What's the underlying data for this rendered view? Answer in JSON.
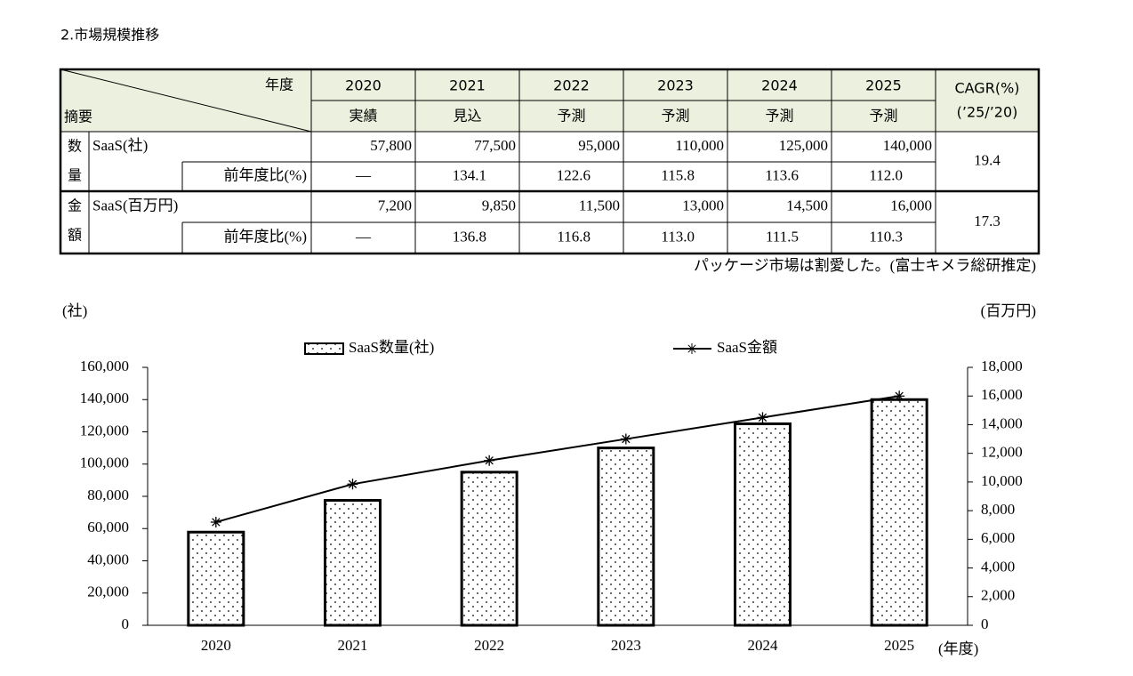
{
  "heading": "2.市場規模推移",
  "table": {
    "corner_top": "年度",
    "corner_bottom": "摘要",
    "years": [
      "2020",
      "2021",
      "2022",
      "2023",
      "2024",
      "2025"
    ],
    "status": [
      "実績",
      "見込",
      "予測",
      "予測",
      "予測",
      "予測"
    ],
    "cagr_header": [
      "CAGR(%)",
      "(’25/’20)"
    ],
    "groups": [
      {
        "label": [
          "数",
          "量"
        ],
        "rows": [
          {
            "name": "SaaS(社)",
            "values": [
              "57,800",
              "77,500",
              "95,000",
              "110,000",
              "125,000",
              "140,000"
            ]
          },
          {
            "name": "前年度比(%)",
            "values": [
              "—",
              "134.1",
              "122.6",
              "115.8",
              "113.6",
              "112.0"
            ]
          }
        ],
        "cagr": "19.4"
      },
      {
        "label": [
          "金",
          "額"
        ],
        "rows": [
          {
            "name": "SaaS(百万円)",
            "values": [
              "7,200",
              "9,850",
              "11,500",
              "13,000",
              "14,500",
              "16,000"
            ]
          },
          {
            "name": "前年度比(%)",
            "values": [
              "—",
              "136.8",
              "116.8",
              "113.0",
              "111.5",
              "110.3"
            ]
          }
        ],
        "cagr": "17.3"
      }
    ]
  },
  "note": "パッケージ市場は割愛した。(富士キメラ総研推定)",
  "chart_data": {
    "type": "bar",
    "y_label": "(社)",
    "y2_label": "(百万円)",
    "x_label": "(年度)",
    "categories": [
      "2020",
      "2021",
      "2022",
      "2023",
      "2024",
      "2025"
    ],
    "series": [
      {
        "name": "SaaS数量(社)",
        "type": "bar",
        "color": "#000000",
        "values": [
          57800,
          77500,
          95000,
          110000,
          125000,
          140000
        ]
      },
      {
        "name": "SaaS金額",
        "type": "line",
        "axis": "y2",
        "color": "#000000",
        "values": [
          7200,
          9850,
          11500,
          13000,
          14500,
          16000
        ]
      }
    ],
    "ylim": [
      0,
      160000
    ],
    "yticks": [
      0,
      {
        "value": 20000,
        "label": "20,000"
      },
      {
        "value": 40000,
        "label": "40,000"
      },
      {
        "value": 60000,
        "label": "60,000"
      },
      {
        "value": 80000,
        "label": "80,000"
      },
      {
        "value": 100000,
        "label": "100,000"
      },
      {
        "value": 120000,
        "label": "120,000"
      },
      {
        "value": 140000,
        "label": "140,000"
      },
      {
        "value": 160000,
        "label": "160,000"
      }
    ],
    "y2lim": [
      0,
      18000
    ],
    "y2ticks": [
      0,
      {
        "value": 2000,
        "label": "2,000"
      },
      {
        "value": 4000,
        "label": "4,000"
      },
      {
        "value": 6000,
        "label": "6,000"
      },
      {
        "value": 8000,
        "label": "8,000"
      },
      {
        "value": 10000,
        "label": "10,000"
      },
      {
        "value": 12000,
        "label": "12,000"
      },
      {
        "value": 14000,
        "label": "14,000"
      },
      {
        "value": 16000,
        "label": "16,000"
      },
      {
        "value": 18000,
        "label": "18,000"
      }
    ],
    "grid": false,
    "legend": "top"
  }
}
